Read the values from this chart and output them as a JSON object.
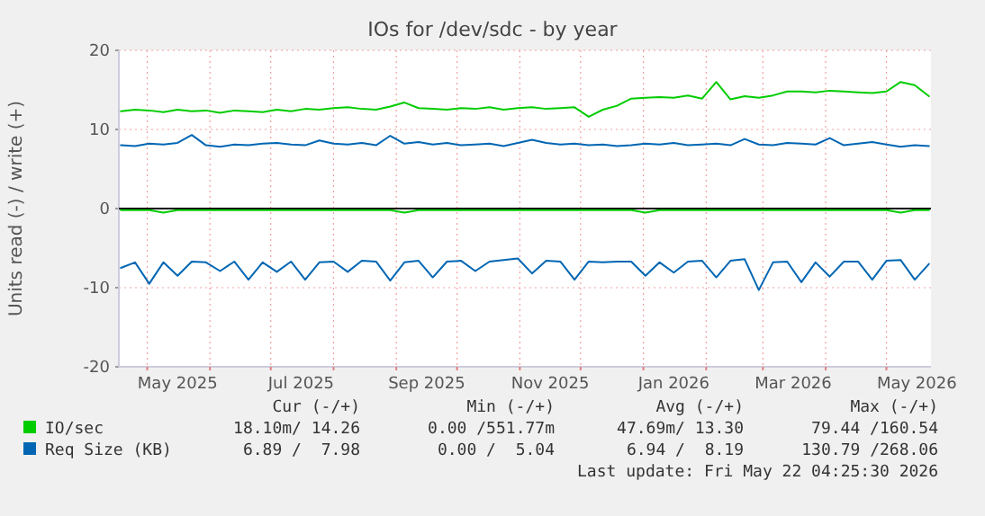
{
  "chart_data": {
    "type": "line",
    "title": "IOs for /dev/sdc - by year",
    "ylabel": "Units read (-) / write (+)",
    "x": [
      "2025-04-18",
      "2025-04-25",
      "2025-05-02",
      "2025-05-09",
      "2025-05-16",
      "2025-05-23",
      "2025-05-30",
      "2025-06-06",
      "2025-06-13",
      "2025-06-20",
      "2025-06-27",
      "2025-07-04",
      "2025-07-11",
      "2025-07-18",
      "2025-07-25",
      "2025-08-01",
      "2025-08-08",
      "2025-08-15",
      "2025-08-22",
      "2025-08-29",
      "2025-09-05",
      "2025-09-12",
      "2025-09-19",
      "2025-09-26",
      "2025-10-03",
      "2025-10-10",
      "2025-10-17",
      "2025-10-24",
      "2025-10-31",
      "2025-11-07",
      "2025-11-14",
      "2025-11-21",
      "2025-11-28",
      "2025-12-05",
      "2025-12-12",
      "2025-12-19",
      "2025-12-26",
      "2026-01-02",
      "2026-01-09",
      "2026-01-16",
      "2026-01-23",
      "2026-01-30",
      "2026-02-06",
      "2026-02-13",
      "2026-02-20",
      "2026-02-27",
      "2026-03-06",
      "2026-03-13",
      "2026-03-20",
      "2026-03-27",
      "2026-04-03",
      "2026-04-10",
      "2026-04-17",
      "2026-04-24",
      "2026-05-01",
      "2026-05-08",
      "2026-05-15",
      "2026-05-22"
    ],
    "series": [
      {
        "name": "IO/sec",
        "color": "#00cc00",
        "values": [
          12.3,
          12.5,
          12.4,
          12.2,
          12.5,
          12.3,
          12.4,
          12.1,
          12.4,
          12.3,
          12.2,
          12.5,
          12.3,
          12.6,
          12.5,
          12.7,
          12.8,
          12.6,
          12.5,
          12.9,
          13.4,
          12.7,
          12.6,
          12.5,
          12.7,
          12.6,
          12.8,
          12.5,
          12.7,
          12.8,
          12.6,
          12.7,
          12.8,
          11.6,
          12.5,
          13.0,
          13.9,
          14.0,
          14.1,
          14.0,
          14.3,
          13.9,
          16.0,
          13.8,
          14.2,
          14.0,
          14.3,
          14.8,
          14.8,
          14.7,
          14.9,
          14.8,
          14.7,
          14.6,
          14.8,
          16.0,
          15.6,
          14.2
        ]
      },
      {
        "color": "#00cc00",
        "values": [
          -0.2,
          -0.2,
          -0.2,
          -0.5,
          -0.2,
          -0.2,
          -0.2,
          -0.2,
          -0.2,
          -0.2,
          -0.2,
          -0.2,
          -0.2,
          -0.2,
          -0.2,
          -0.2,
          -0.2,
          -0.2,
          -0.2,
          -0.2,
          -0.5,
          -0.2,
          -0.2,
          -0.2,
          -0.2,
          -0.2,
          -0.2,
          -0.2,
          -0.2,
          -0.2,
          -0.2,
          -0.2,
          -0.2,
          -0.2,
          -0.2,
          -0.2,
          -0.2,
          -0.5,
          -0.2,
          -0.2,
          -0.2,
          -0.2,
          -0.2,
          -0.2,
          -0.2,
          -0.2,
          -0.2,
          -0.2,
          -0.2,
          -0.2,
          -0.2,
          -0.2,
          -0.2,
          -0.2,
          -0.2,
          -0.5,
          -0.2,
          -0.2
        ]
      },
      {
        "name": "Req Size (KB)",
        "color": "#0066b3",
        "values": [
          8.0,
          7.9,
          8.2,
          8.1,
          8.3,
          9.3,
          8.0,
          7.8,
          8.1,
          8.0,
          8.2,
          8.3,
          8.1,
          8.0,
          8.6,
          8.2,
          8.1,
          8.3,
          8.0,
          9.2,
          8.2,
          8.4,
          8.1,
          8.3,
          8.0,
          8.1,
          8.2,
          7.9,
          8.3,
          8.7,
          8.3,
          8.1,
          8.2,
          8.0,
          8.1,
          7.9,
          8.0,
          8.2,
          8.1,
          8.3,
          8.0,
          8.1,
          8.2,
          8.0,
          8.8,
          8.1,
          8.0,
          8.3,
          8.2,
          8.1,
          8.9,
          8.0,
          8.2,
          8.4,
          8.1,
          7.8,
          8.0,
          7.9
        ]
      },
      {
        "color": "#0066b3",
        "values": [
          -7.5,
          -6.8,
          -9.5,
          -6.8,
          -8.5,
          -6.7,
          -6.8,
          -7.9,
          -6.7,
          -9.0,
          -6.8,
          -8.0,
          -6.7,
          -9.0,
          -6.8,
          -6.7,
          -8.0,
          -6.6,
          -6.7,
          -9.1,
          -6.8,
          -6.6,
          -8.7,
          -6.7,
          -6.6,
          -7.9,
          -6.7,
          -6.5,
          -6.3,
          -8.2,
          -6.6,
          -6.7,
          -9.0,
          -6.7,
          -6.8,
          -6.7,
          -6.7,
          -8.5,
          -6.8,
          -8.1,
          -6.7,
          -6.6,
          -8.7,
          -6.6,
          -6.4,
          -10.3,
          -6.8,
          -6.7,
          -9.3,
          -6.8,
          -8.6,
          -6.7,
          -6.7,
          -9.0,
          -6.6,
          -6.5,
          -9.0,
          -7.0
        ]
      }
    ],
    "xlim": [
      "2025-04-17",
      "2026-05-23"
    ],
    "xticks": [
      {
        "value": "2025-05-01",
        "label": null
      },
      {
        "value": "2025-05-16",
        "label": "May 2025"
      },
      {
        "value": "2025-06-01",
        "label": null
      },
      {
        "value": "2025-07-01",
        "label": null
      },
      {
        "value": "2025-07-16",
        "label": "Jul 2025"
      },
      {
        "value": "2025-08-01",
        "label": null
      },
      {
        "value": "2025-09-01",
        "label": null
      },
      {
        "value": "2025-09-16",
        "label": "Sep 2025"
      },
      {
        "value": "2025-10-01",
        "label": null
      },
      {
        "value": "2025-11-01",
        "label": null
      },
      {
        "value": "2025-11-16",
        "label": "Nov 2025"
      },
      {
        "value": "2025-12-01",
        "label": null
      },
      {
        "value": "2026-01-01",
        "label": null
      },
      {
        "value": "2026-01-16",
        "label": "Jan 2026"
      },
      {
        "value": "2026-02-01",
        "label": null
      },
      {
        "value": "2026-03-01",
        "label": null
      },
      {
        "value": "2026-03-16",
        "label": "Mar 2026"
      },
      {
        "value": "2026-04-01",
        "label": null
      },
      {
        "value": "2026-05-01",
        "label": null
      },
      {
        "value": "2026-05-16",
        "label": "May 2026"
      }
    ],
    "ylim": [
      -20,
      20
    ],
    "yticks": [
      -20,
      -10,
      0,
      10,
      20
    ],
    "grid": true,
    "legend": "bottom",
    "ref_lines": [
      {
        "axis": "y",
        "value": 0,
        "color": "#000000"
      }
    ],
    "annotations": [
      "Cur (-/+)",
      "Min (-/+)",
      "Avg (-/+)",
      "Max (-/+)",
      "18.10m/ 14.26",
      "0.00 /551.77m",
      "47.69m/ 13.30",
      "79.44 /160.54",
      "6.89 /  7.98",
      "0.00 /  5.04",
      "6.94 /  8.19",
      "130.79 /268.06",
      "Last update: Fri May 22 04:25:30 2026"
    ]
  }
}
